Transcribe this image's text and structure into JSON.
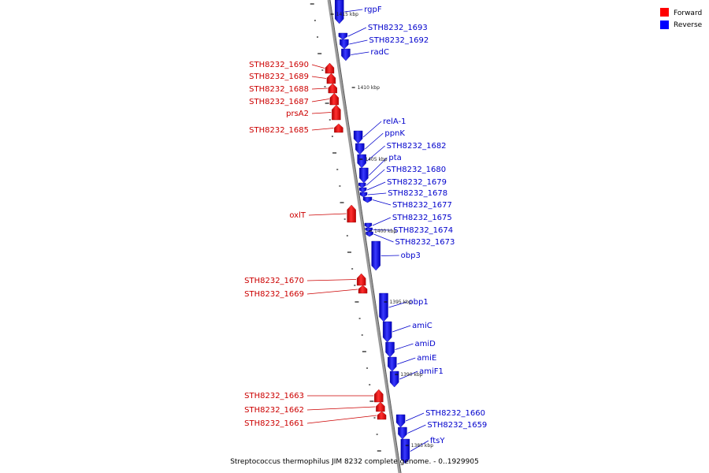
{
  "legend": [
    {
      "label": "Forward",
      "color": "#ff0000"
    },
    {
      "label": "Reverse",
      "color": "#0000ff"
    }
  ],
  "caption": "Streptococcus thermophilus JIM 8232 complete genome. - 0..1929905",
  "colors": {
    "forward": "#ff1a1a",
    "reverse": "#1a1aff",
    "backbone": "#9a9a9a"
  },
  "kbp_labels": [
    "1415 kbp",
    "1410 kbp",
    "1405 kbp",
    "1400 kbp",
    "1395 kbp",
    "1390 kbp",
    "1385 kbp"
  ],
  "forward_genes": [
    "STH8232_1690",
    "STH8232_1689",
    "STH8232_1688",
    "STH8232_1687",
    "prsA2",
    "STH8232_1685",
    "oxlT",
    "STH8232_1670",
    "STH8232_1669",
    "STH8232_1663",
    "STH8232_1662",
    "STH8232_1661"
  ],
  "reverse_genes": [
    "rgpF",
    "STH8232_1693",
    "STH8232_1692",
    "radC",
    "relA-1",
    "ppnK",
    "STH8232_1682",
    "pta",
    "STH8232_1680",
    "STH8232_1679",
    "STH8232_1678",
    "STH8232_1677",
    "STH8232_1675",
    "STH8232_1674",
    "STH8232_1673",
    "obp3",
    "obp1",
    "amiC",
    "amiD",
    "amiE",
    "amiF1",
    "STH8232_1660",
    "STH8232_1659",
    "ftsY"
  ]
}
